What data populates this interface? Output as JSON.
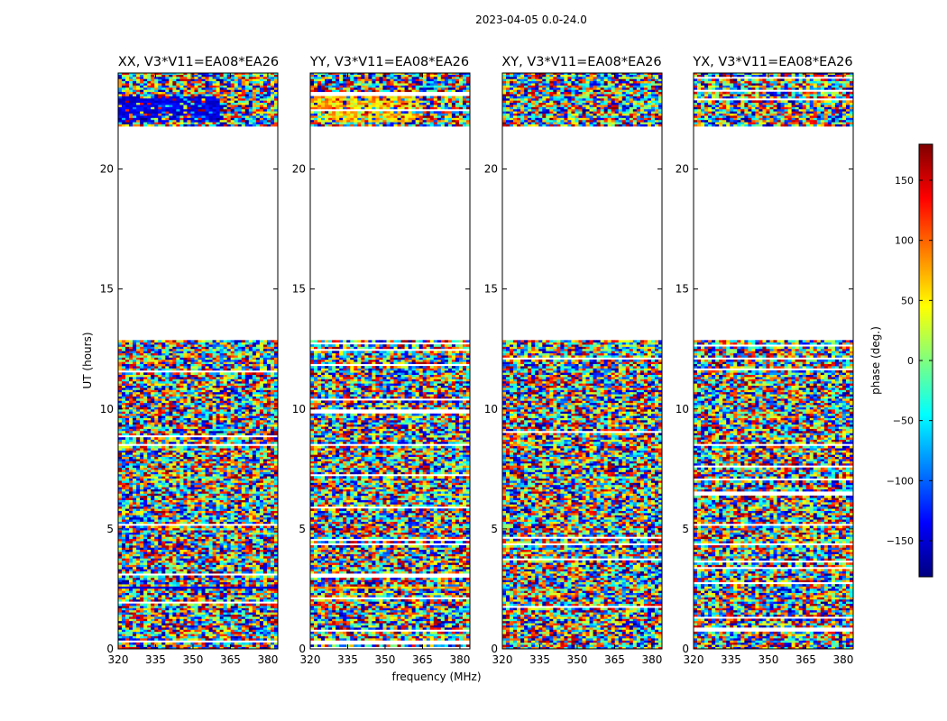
{
  "figure": {
    "suptitle": "2023-04-05 0.0-24.0"
  },
  "chart_data": {
    "type": "heatmap",
    "suptitle": "2023-04-05 0.0-24.0",
    "xlabel": "frequency (MHz)",
    "ylabel": "UT (hours)",
    "xlim": [
      320,
      384
    ],
    "ylim": [
      0,
      24
    ],
    "xticks": [
      320,
      335,
      350,
      365,
      380
    ],
    "yticks": [
      0,
      5,
      10,
      15,
      20
    ],
    "panels": [
      {
        "pol": "XX",
        "title": "XX, V3*V11=EA08*EA26"
      },
      {
        "pol": "YY",
        "title": "YY, V3*V11=EA08*EA26"
      },
      {
        "pol": "XY",
        "title": "XY, V3*V11=EA08*EA26"
      },
      {
        "pol": "YX",
        "title": "YX, V3*V11=EA08*EA26"
      }
    ],
    "data_time_ranges_hours": [
      [
        0.0,
        12.85
      ],
      [
        21.75,
        24.0
      ]
    ],
    "no_data_time_range_hours": [
      12.85,
      21.75
    ],
    "colorbar": {
      "label": "phase (deg.)",
      "range": [
        -180,
        180
      ],
      "ticks": [
        -150,
        -100,
        -50,
        0,
        50,
        100,
        150
      ],
      "tick_labels": [
        "−150",
        "−100",
        "−50",
        "0",
        "50",
        "100",
        "150"
      ],
      "colormap": "jet",
      "colors": [
        "#00007f",
        "#0000ff",
        "#007fff",
        "#00ffff",
        "#7fff7f",
        "#ffff00",
        "#ff7f00",
        "#ff0000",
        "#7f0000"
      ]
    },
    "tick_labels": {
      "x": [
        "320",
        "335",
        "350",
        "365",
        "380"
      ],
      "y": [
        "0",
        "5",
        "10",
        "15",
        "20"
      ]
    }
  }
}
